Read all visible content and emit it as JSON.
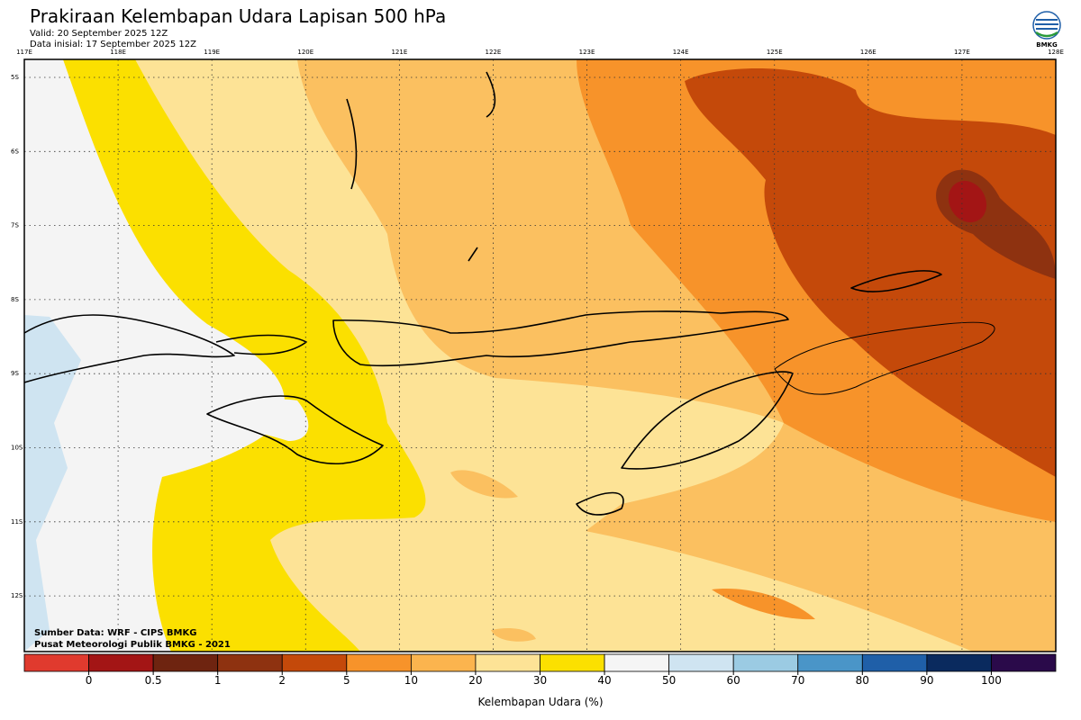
{
  "header": {
    "title": "Prakiraan Kelembapan Udara Lapisan 500 hPa",
    "valid": "Valid: 20 September 2025 12Z",
    "init": "Data inisial: 17 September 2025 12Z"
  },
  "logo": "BMKG",
  "map": {
    "lon_labels": [
      "117E",
      "118E",
      "119E",
      "120E",
      "121E",
      "122E",
      "123E",
      "124E",
      "125E",
      "126E",
      "127E",
      "128E"
    ],
    "lat_labels": [
      "5S",
      "6S",
      "7S",
      "8S",
      "9S",
      "10S",
      "11S",
      "12S"
    ],
    "source": "Sumber Data: WRF - CIPS BMKG",
    "credit": "Pusat Meteorologi Publik BMKG - 2021"
  },
  "colorbar": {
    "ticks": [
      0,
      0.5,
      1,
      2,
      5,
      10,
      20,
      30,
      40,
      50,
      60,
      70,
      80,
      90,
      100
    ],
    "colors": [
      "#e03a2e",
      "#a31515",
      "#6e2410",
      "#8e3210",
      "#c4490a",
      "#f7932a",
      "#fbb44e",
      "#fde396",
      "#fbe000",
      "#f5f5f5",
      "#cfe4f1",
      "#9bcbe3",
      "#4a95c8",
      "#1f5fa8",
      "#0a2a5e",
      "#2a0a4a"
    ],
    "label": "Kelembapan Udara (%)"
  }
}
